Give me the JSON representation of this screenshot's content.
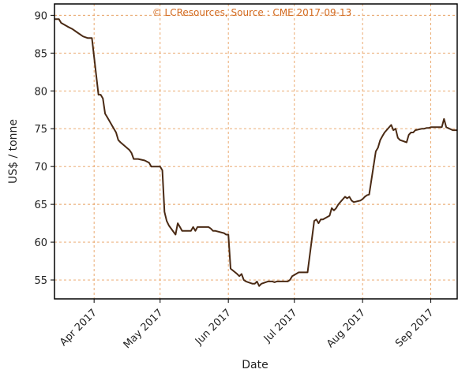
{
  "chart_data": {
    "type": "line",
    "watermark": "© LCResources, Source : CME 2017-09-13",
    "xlabel": "Date",
    "ylabel": "US$ / tonne",
    "xlim": [
      "2017-03-14",
      "2017-09-13"
    ],
    "ylim": [
      52.5,
      91.5
    ],
    "yticks": [
      55,
      60,
      65,
      70,
      75,
      80,
      85,
      90
    ],
    "xticks": [
      {
        "date": "2017-04-01",
        "label": "Apr 2017"
      },
      {
        "date": "2017-05-01",
        "label": "May 2017"
      },
      {
        "date": "2017-06-01",
        "label": "Jun 2017"
      },
      {
        "date": "2017-07-01",
        "label": "Jul 2017"
      },
      {
        "date": "2017-08-01",
        "label": "Aug 2017"
      },
      {
        "date": "2017-09-01",
        "label": "Sep 2017"
      }
    ],
    "grid": true,
    "colors": {
      "line": "#4a2a14",
      "grid": "#e8a060",
      "watermark": "#d2691e",
      "axis": "#000000"
    },
    "series": [
      {
        "x": [
          "2017-03-14",
          "2017-03-16",
          "2017-03-17",
          "2017-03-20",
          "2017-03-22",
          "2017-03-24",
          "2017-03-27",
          "2017-03-29",
          "2017-03-30",
          "2017-03-31",
          "2017-04-03",
          "2017-04-04",
          "2017-04-05",
          "2017-04-06",
          "2017-04-07",
          "2017-04-10",
          "2017-04-11",
          "2017-04-12",
          "2017-04-13",
          "2017-04-17",
          "2017-04-18",
          "2017-04-19",
          "2017-04-20",
          "2017-04-21",
          "2017-04-24",
          "2017-04-26",
          "2017-04-27",
          "2017-04-28",
          "2017-05-01",
          "2017-05-02",
          "2017-05-03",
          "2017-05-04",
          "2017-05-05",
          "2017-05-08",
          "2017-05-09",
          "2017-05-10",
          "2017-05-11",
          "2017-05-12",
          "2017-05-15",
          "2017-05-16",
          "2017-05-17",
          "2017-05-18",
          "2017-05-19",
          "2017-05-22",
          "2017-05-23",
          "2017-05-24",
          "2017-05-25",
          "2017-05-26",
          "2017-05-30",
          "2017-05-31",
          "2017-06-01",
          "2017-06-02",
          "2017-06-05",
          "2017-06-06",
          "2017-06-07",
          "2017-06-08",
          "2017-06-09",
          "2017-06-12",
          "2017-06-13",
          "2017-06-14",
          "2017-06-15",
          "2017-06-16",
          "2017-06-19",
          "2017-06-20",
          "2017-06-21",
          "2017-06-22",
          "2017-06-23",
          "2017-06-26",
          "2017-06-27",
          "2017-06-28",
          "2017-06-29",
          "2017-06-30",
          "2017-07-03",
          "2017-07-04",
          "2017-07-05",
          "2017-07-06",
          "2017-07-07",
          "2017-07-10",
          "2017-07-11",
          "2017-07-12",
          "2017-07-13",
          "2017-07-14",
          "2017-07-17",
          "2017-07-18",
          "2017-07-19",
          "2017-07-20",
          "2017-07-21",
          "2017-07-24",
          "2017-07-25",
          "2017-07-26",
          "2017-07-27",
          "2017-07-28",
          "2017-07-31",
          "2017-08-01",
          "2017-08-02",
          "2017-08-03",
          "2017-08-04",
          "2017-08-07",
          "2017-08-08",
          "2017-08-09",
          "2017-08-10",
          "2017-08-11",
          "2017-08-14",
          "2017-08-15",
          "2017-08-16",
          "2017-08-17",
          "2017-08-18",
          "2017-08-21",
          "2017-08-22",
          "2017-08-23",
          "2017-08-24",
          "2017-08-25",
          "2017-08-28",
          "2017-08-29",
          "2017-08-30",
          "2017-08-31",
          "2017-09-01",
          "2017-09-05",
          "2017-09-06",
          "2017-09-07",
          "2017-09-08",
          "2017-09-11",
          "2017-09-12",
          "2017-09-13"
        ],
        "values": [
          89.5,
          89.5,
          89.0,
          88.5,
          88.2,
          87.8,
          87.2,
          87.0,
          87.0,
          87.0,
          79.5,
          79.5,
          79.0,
          77.0,
          76.5,
          75.0,
          74.5,
          73.5,
          73.2,
          72.2,
          71.8,
          71.0,
          71.0,
          71.0,
          70.8,
          70.5,
          70.0,
          70.0,
          70.0,
          69.5,
          64.0,
          62.8,
          62.2,
          61.0,
          62.5,
          62.0,
          61.5,
          61.5,
          61.5,
          62.0,
          61.5,
          62.0,
          62.0,
          62.0,
          62.0,
          61.8,
          61.5,
          61.5,
          61.2,
          61.0,
          61.0,
          56.5,
          55.8,
          55.5,
          55.8,
          55.0,
          54.8,
          54.5,
          54.5,
          54.8,
          54.2,
          54.5,
          54.8,
          54.8,
          54.8,
          54.7,
          54.8,
          54.8,
          54.8,
          54.8,
          55.0,
          55.5,
          56.0,
          56.0,
          56.0,
          56.0,
          56.0,
          62.8,
          63.0,
          62.5,
          63.0,
          63.0,
          63.5,
          64.5,
          64.2,
          64.5,
          65.0,
          66.0,
          65.8,
          66.0,
          65.5,
          65.3,
          65.5,
          65.7,
          66.0,
          66.2,
          66.3,
          72.0,
          72.5,
          73.5,
          74.0,
          74.5,
          75.5,
          74.8,
          75.0,
          73.8,
          73.5,
          73.2,
          74.2,
          74.5,
          74.5,
          74.8,
          75.0,
          75.0,
          75.1,
          75.1,
          75.2,
          75.2,
          75.2,
          76.3,
          75.2,
          74.8,
          74.8,
          74.8
        ]
      }
    ]
  }
}
